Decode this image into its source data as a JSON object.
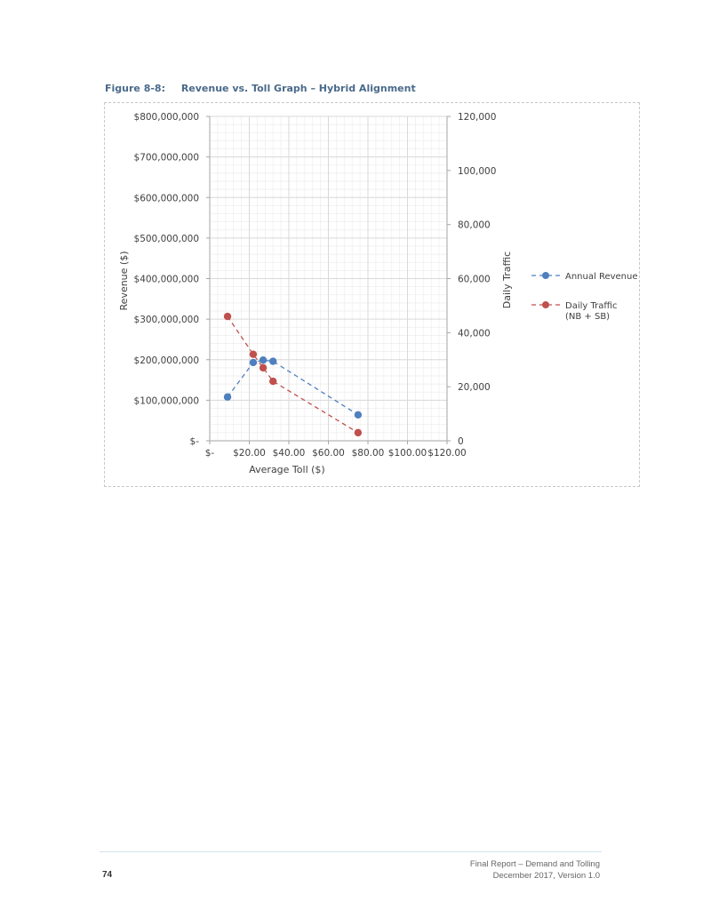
{
  "figure": {
    "number": "Figure 8-8:",
    "title": "Revenue vs. Toll Graph – Hybrid Alignment"
  },
  "footer": {
    "page_number": "74",
    "report_title": "Final Report – Demand and Tolling",
    "version": "December 2017, Version 1.0"
  },
  "colors": {
    "annual_revenue": "#4f7fbf",
    "daily_traffic": "#c0504d",
    "grid_major": "#d9d9d9",
    "grid_minor": "#eeeeee"
  },
  "chart_data": {
    "type": "scatter",
    "xlabel": "Average Toll ($)",
    "ylabel": "Revenue ($)",
    "y2label": "Daily Traffic",
    "xlim": [
      0,
      120
    ],
    "ylim": [
      0,
      800000000
    ],
    "y2lim": [
      0,
      120000
    ],
    "x_ticks": [
      "$-",
      "$20.00",
      "$40.00",
      "$60.00",
      "$80.00",
      "$100.00",
      "$120.00"
    ],
    "y_ticks": [
      "$-",
      "$100,000,000",
      "$200,000,000",
      "$300,000,000",
      "$400,000,000",
      "$500,000,000",
      "$600,000,000",
      "$700,000,000",
      "$800,000,000"
    ],
    "y2_ticks": [
      "0",
      "20,000",
      "40,000",
      "60,000",
      "80,000",
      "100,000",
      "120,000"
    ],
    "grid": true,
    "legend_position": "right",
    "series": [
      {
        "name": "Annual Revenue",
        "axis": "left",
        "line_style": "dashed",
        "x": [
          9,
          22,
          27,
          32,
          75
        ],
        "y": [
          108000000,
          193000000,
          199000000,
          196000000,
          64000000
        ]
      },
      {
        "name": "Daily Traffic (NB + SB)",
        "name_lines": [
          "Daily Traffic",
          "(NB + SB)"
        ],
        "axis": "right",
        "line_style": "dashed",
        "x": [
          9,
          22,
          27,
          32,
          75
        ],
        "y": [
          46000,
          32000,
          27000,
          22000,
          3000
        ]
      }
    ]
  }
}
